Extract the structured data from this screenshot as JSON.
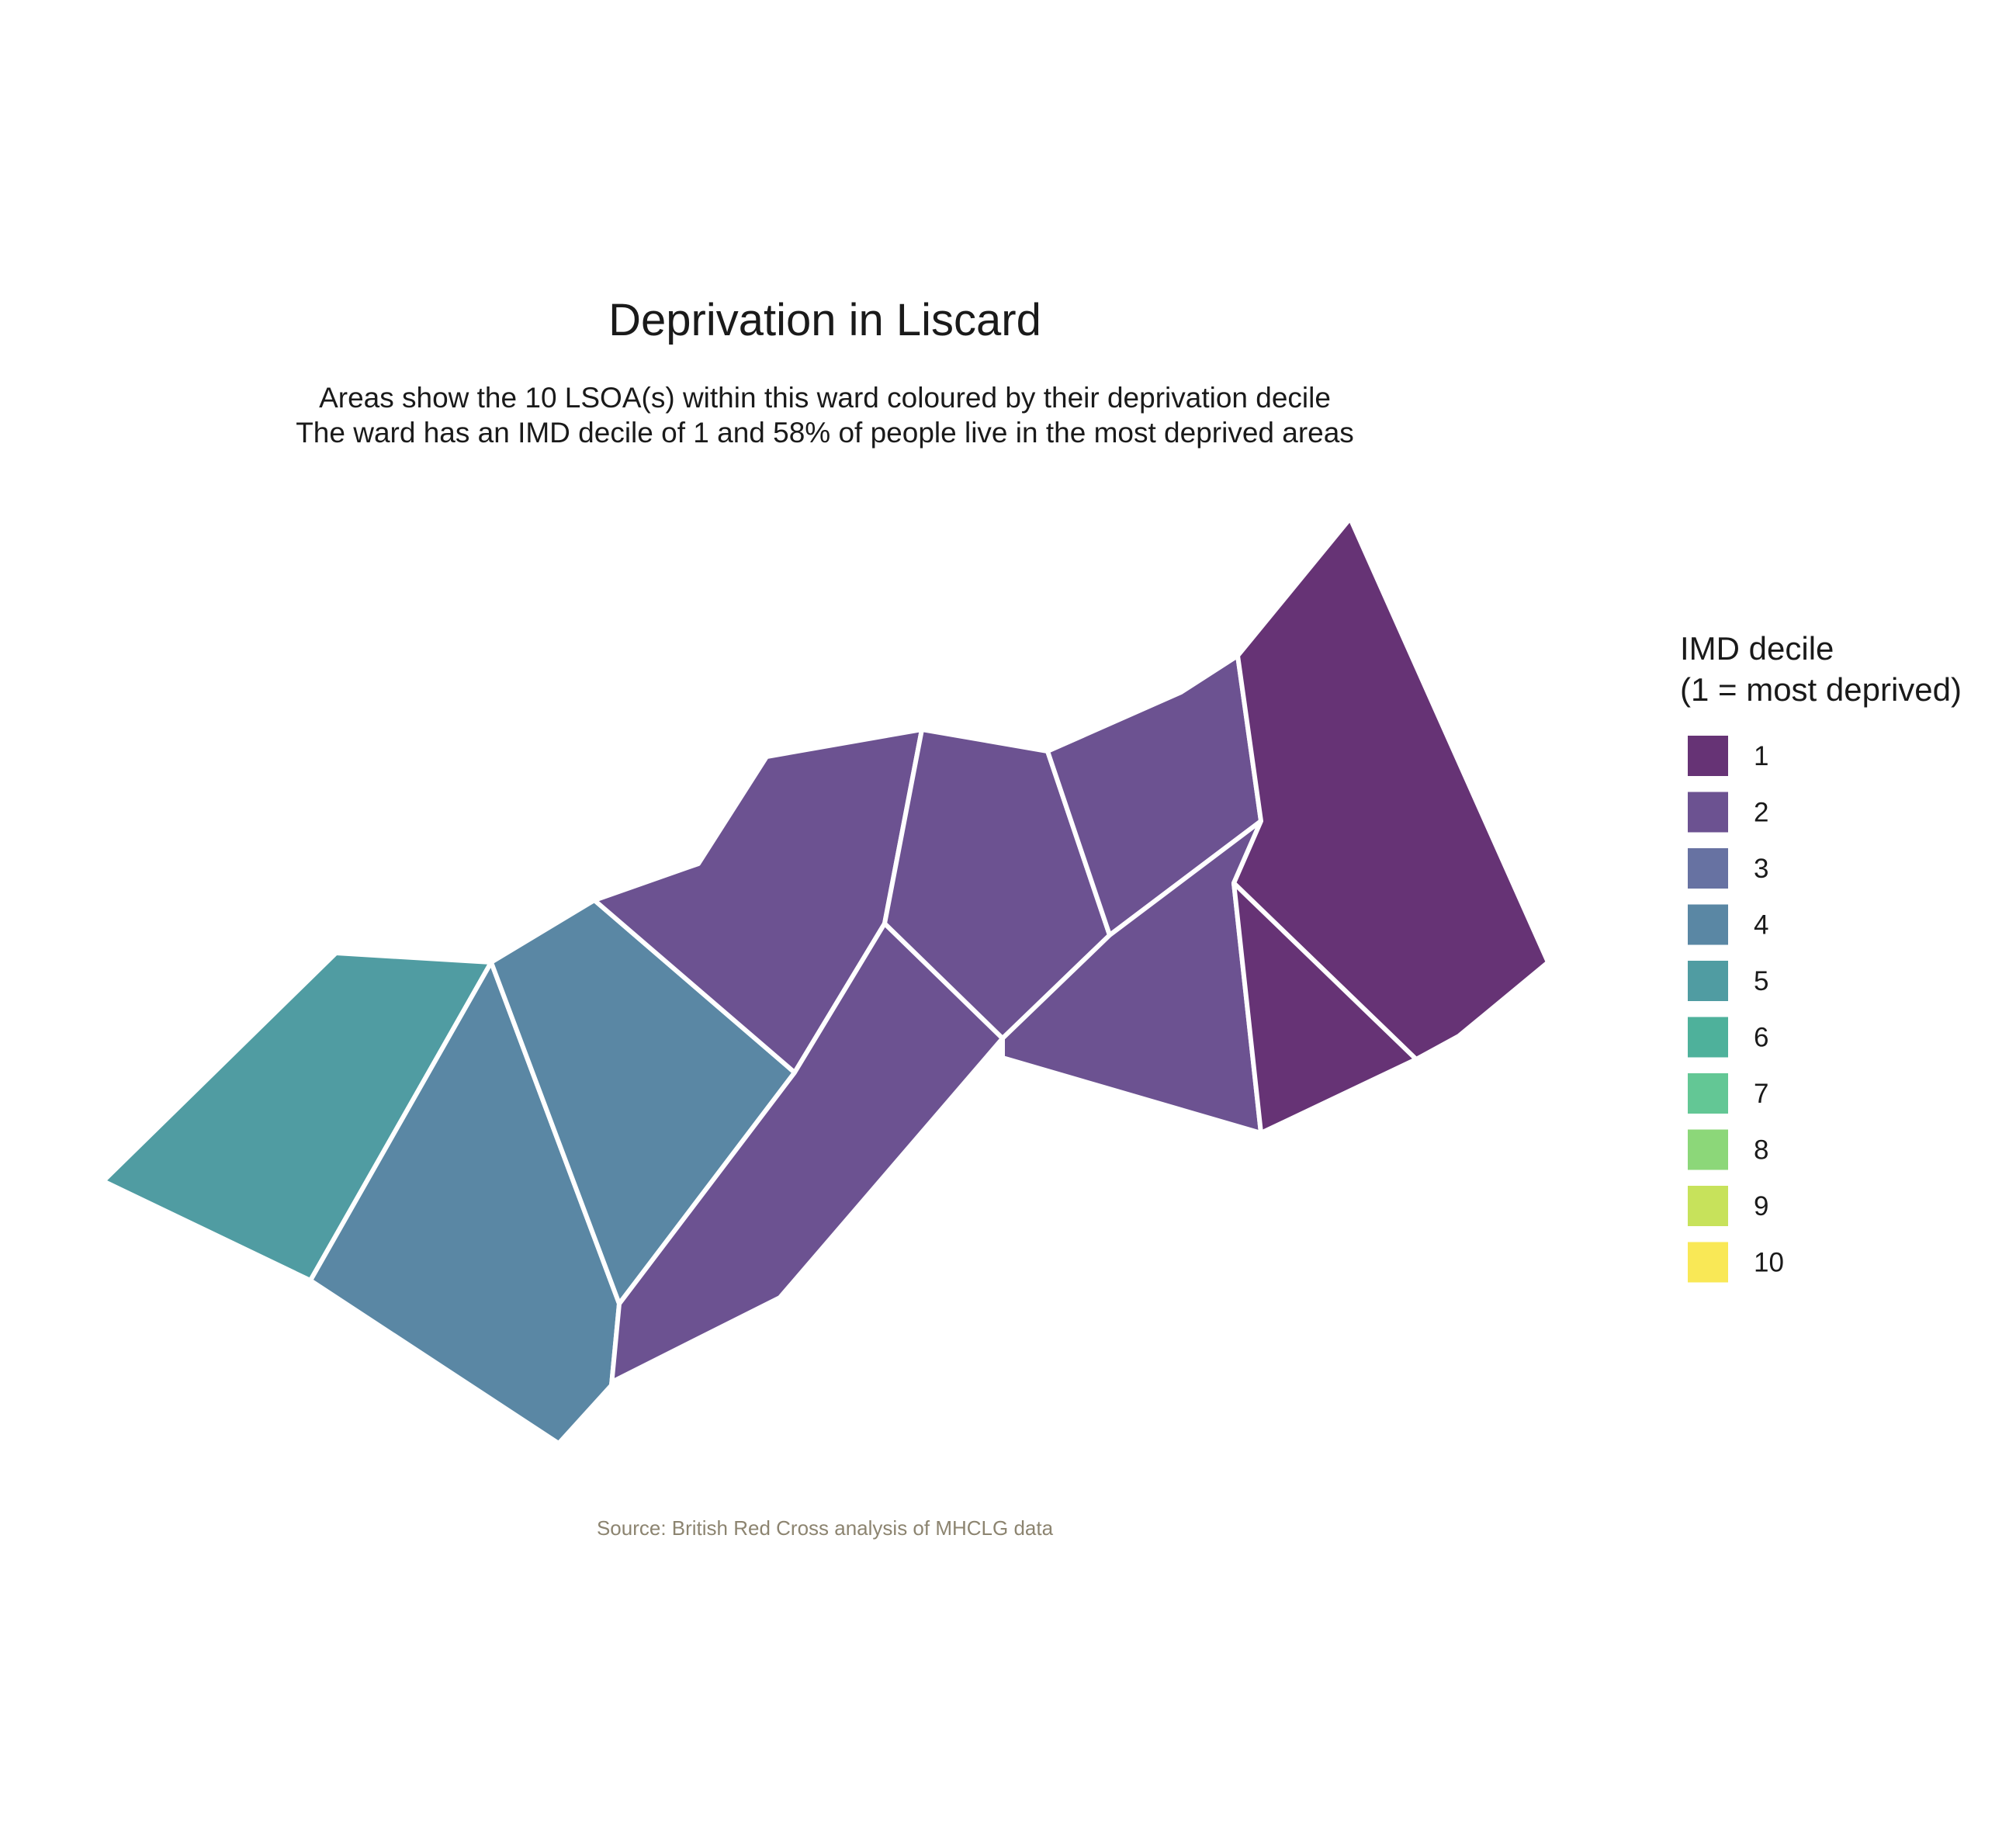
{
  "title": "Deprivation in Liscard",
  "subtitle_line1": "Areas show the 10 LSOA(s) within this ward coloured by their deprivation decile",
  "subtitle_line2": "The ward has an IMD decile of 1 and 58% of people live in the most deprived areas",
  "caption": "Source: British Red Cross analysis of MHCLG data",
  "legend": {
    "title_line1": "IMD decile",
    "title_line2": "(1 = most deprived)",
    "items": [
      {
        "label": "1",
        "color": "#663375"
      },
      {
        "label": "2",
        "color": "#6C5291"
      },
      {
        "label": "3",
        "color": "#6772A2"
      },
      {
        "label": "4",
        "color": "#5A87A4"
      },
      {
        "label": "5",
        "color": "#509CA2"
      },
      {
        "label": "6",
        "color": "#4EB19B"
      },
      {
        "label": "7",
        "color": "#63C795"
      },
      {
        "label": "8",
        "color": "#8CD779"
      },
      {
        "label": "9",
        "color": "#C7E25B"
      },
      {
        "label": "10",
        "color": "#F9E856"
      }
    ]
  },
  "areas": [
    {
      "id": "lsoa-west-decile-5",
      "decile": 5
    },
    {
      "id": "lsoa-southwest-decile-4",
      "decile": 4
    },
    {
      "id": "lsoa-central-west-decile-4",
      "decile": 4
    },
    {
      "id": "lsoa-central-north-decile-2",
      "decile": 2
    },
    {
      "id": "lsoa-central-south-decile-2",
      "decile": 2
    },
    {
      "id": "lsoa-central-decile-2",
      "decile": 2
    },
    {
      "id": "lsoa-northeast-decile-2",
      "decile": 2
    },
    {
      "id": "lsoa-east-south-decile-2",
      "decile": 2
    },
    {
      "id": "lsoa-far-east-decile-1",
      "decile": 1
    },
    {
      "id": "lsoa-east-small-decile-1",
      "decile": 1
    }
  ]
}
